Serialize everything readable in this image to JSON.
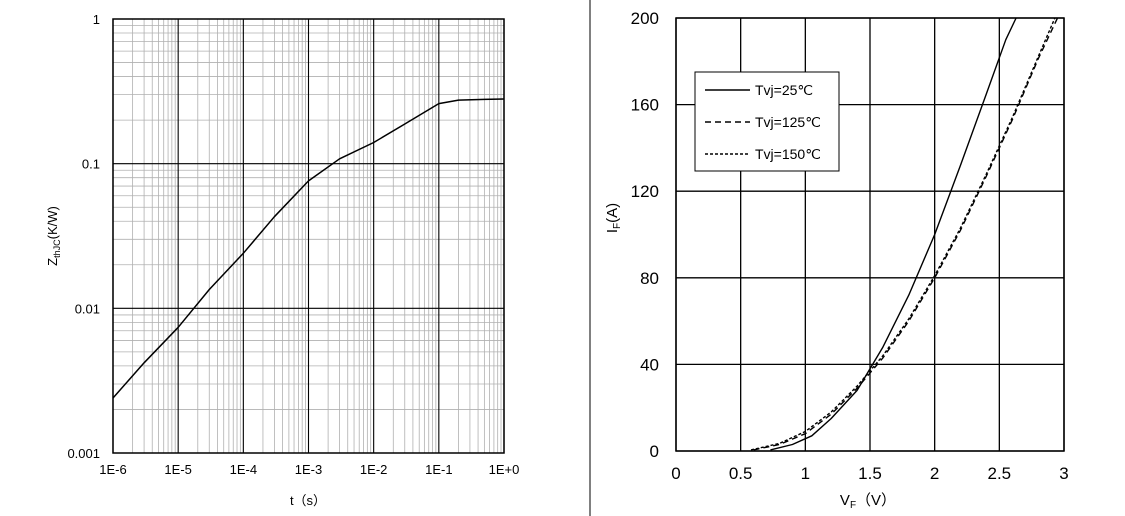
{
  "chart_data": [
    {
      "type": "line",
      "xscale": "log",
      "yscale": "log",
      "xlim": [
        1e-06,
        1
      ],
      "ylim": [
        0.001,
        1
      ],
      "xlabel": "t（s）",
      "ylabel_main": "Z",
      "ylabel_sub": "thJC",
      "ylabel_suffix": "(K/W)",
      "grid": true,
      "x_ticks": [
        {
          "v": 1e-06,
          "label": "1E-6"
        },
        {
          "v": 1e-05,
          "label": "1E-5"
        },
        {
          "v": 0.0001,
          "label": "1E-4"
        },
        {
          "v": 0.001,
          "label": "1E-3"
        },
        {
          "v": 0.01,
          "label": "1E-2"
        },
        {
          "v": 0.1,
          "label": "1E-1"
        },
        {
          "v": 1,
          "label": "1E+0"
        }
      ],
      "y_ticks": [
        {
          "v": 1,
          "label": "1"
        },
        {
          "v": 0.1,
          "label": "0.1"
        },
        {
          "v": 0.01,
          "label": "0.01"
        },
        {
          "v": 0.001,
          "label": "0.001"
        }
      ],
      "series": [
        {
          "x": [
            1e-06,
            3e-06,
            1e-05,
            3e-05,
            0.0001,
            0.0003,
            0.001,
            0.003,
            0.01,
            0.03,
            0.1,
            0.2,
            0.5,
            1
          ],
          "y": [
            0.0024,
            0.0042,
            0.0074,
            0.0135,
            0.024,
            0.043,
            0.076,
            0.108,
            0.14,
            0.188,
            0.26,
            0.275,
            0.278,
            0.28
          ]
        }
      ]
    },
    {
      "type": "line",
      "xlim": [
        0,
        3
      ],
      "ylim": [
        0,
        200
      ],
      "xlabel_main": "V",
      "xlabel_sub": "F",
      "xlabel_suffix": "（V）",
      "ylabel_main": "I",
      "ylabel_sub": "F",
      "ylabel_suffix": "(A)",
      "grid": true,
      "legend_position": "top-left",
      "x_ticks": [
        {
          "v": 0,
          "label": "0"
        },
        {
          "v": 0.5,
          "label": "0.5"
        },
        {
          "v": 1,
          "label": "1"
        },
        {
          "v": 1.5,
          "label": "1.5"
        },
        {
          "v": 2,
          "label": "2"
        },
        {
          "v": 2.5,
          "label": "2.5"
        },
        {
          "v": 3,
          "label": "3"
        }
      ],
      "y_ticks": [
        {
          "v": 0,
          "label": "0"
        },
        {
          "v": 40,
          "label": "40"
        },
        {
          "v": 80,
          "label": "80"
        },
        {
          "v": 120,
          "label": "120"
        },
        {
          "v": 160,
          "label": "160"
        },
        {
          "v": 200,
          "label": "200"
        }
      ],
      "series": [
        {
          "name": "Tvj=25℃",
          "dash": "solid",
          "x": [
            0.73,
            0.9,
            1.05,
            1.2,
            1.4,
            1.6,
            1.8,
            2.0,
            2.2,
            2.4,
            2.55,
            2.63
          ],
          "y": [
            0.5,
            3,
            7,
            15,
            28,
            48,
            72,
            100,
            132,
            165,
            190,
            200
          ]
        },
        {
          "name": "Tvj=125℃",
          "dash": "dashed",
          "x": [
            0.6,
            0.8,
            1.0,
            1.2,
            1.4,
            1.6,
            1.8,
            2.0,
            2.2,
            2.4,
            2.6,
            2.8,
            2.95
          ],
          "y": [
            0.5,
            3,
            8,
            17,
            29,
            43,
            60,
            80,
            102,
            127,
            153,
            181,
            200
          ]
        },
        {
          "name": "Tvj=150℃",
          "dash": "dotted",
          "x": [
            0.58,
            0.8,
            1.0,
            1.2,
            1.4,
            1.6,
            1.8,
            2.0,
            2.2,
            2.4,
            2.6,
            2.8,
            2.93
          ],
          "y": [
            0.5,
            3.5,
            9,
            18,
            30,
            44,
            61,
            81,
            103,
            128,
            154,
            182,
            200
          ]
        }
      ]
    }
  ],
  "colors": {
    "line": "#000000",
    "grid_major": "#000000",
    "grid_minor": "#b0b0b0"
  }
}
